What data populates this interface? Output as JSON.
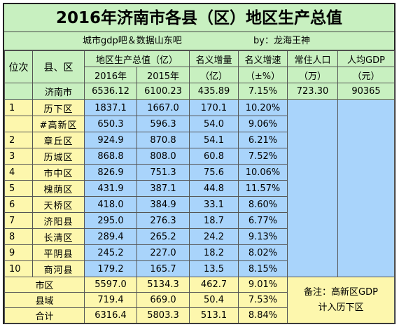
{
  "title": "2016年济南市各县（区）地区生产总值",
  "subtitle": {
    "source": "城市gdp吧＆数据山东吧",
    "author": "by：龙海王神"
  },
  "header": {
    "rank": "位次",
    "region": "县、区",
    "gdp_group": "地区生产总值（亿）",
    "y2016": "2016年",
    "y2015": "2015年",
    "nominal_increase": "名义增量",
    "nominal_increase_unit": "（亿）",
    "nominal_rate": "名义增速",
    "nominal_rate_unit": "（±%）",
    "resident_pop": "常住人口",
    "resident_pop_unit": "（万）",
    "per_capita": "人均GDP",
    "per_capita_unit": "（元）"
  },
  "jinan": {
    "name": "济南市",
    "y2016": "6536.12",
    "y2015": "6100.23",
    "inc": "435.89",
    "rate": "7.15%",
    "pop": "723.30",
    "per": "90365"
  },
  "rows": [
    {
      "rank": "1",
      "name": "历下区",
      "y2016": "1837.1",
      "y2015": "1667.0",
      "inc": "170.1",
      "rate": "10.20%"
    },
    {
      "rank": "",
      "name": "#高新区",
      "y2016": "650.3",
      "y2015": "596.3",
      "inc": "54.0",
      "rate": "9.06%"
    },
    {
      "rank": "2",
      "name": "章丘区",
      "y2016": "924.9",
      "y2015": "870.8",
      "inc": "54.1",
      "rate": "6.21%"
    },
    {
      "rank": "3",
      "name": "历城区",
      "y2016": "868.8",
      "y2015": "808.0",
      "inc": "60.8",
      "rate": "7.52%"
    },
    {
      "rank": "4",
      "name": "市中区",
      "y2016": "826.9",
      "y2015": "751.3",
      "inc": "75.6",
      "rate": "10.06%"
    },
    {
      "rank": "5",
      "name": "槐荫区",
      "y2016": "431.9",
      "y2015": "387.1",
      "inc": "44.8",
      "rate": "11.57%"
    },
    {
      "rank": "6",
      "name": "天桥区",
      "y2016": "418.0",
      "y2015": "384.9",
      "inc": "33.1",
      "rate": "8.60%"
    },
    {
      "rank": "7",
      "name": "济阳县",
      "y2016": "295.0",
      "y2015": "276.3",
      "inc": "18.7",
      "rate": "6.77%"
    },
    {
      "rank": "8",
      "name": "长清区",
      "y2016": "289.4",
      "y2015": "265.2",
      "inc": "24.2",
      "rate": "9.13%"
    },
    {
      "rank": "9",
      "name": "平阴县",
      "y2016": "245.2",
      "y2015": "227.0",
      "inc": "18.2",
      "rate": "8.02%"
    },
    {
      "rank": "10",
      "name": "商河县",
      "y2016": "179.2",
      "y2015": "165.7",
      "inc": "13.5",
      "rate": "8.15%"
    }
  ],
  "summary": [
    {
      "name": "市区",
      "y2016": "5597.0",
      "y2015": "5134.3",
      "inc": "462.7",
      "rate": "9.01%"
    },
    {
      "name": "县域",
      "y2016": "719.4",
      "y2015": "669.0",
      "inc": "50.4",
      "rate": "7.53%"
    },
    {
      "name": "合计",
      "y2016": "6316.4",
      "y2015": "5803.3",
      "inc": "513.1",
      "rate": "8.84%"
    }
  ],
  "note": {
    "line1": "备注：高新区GDP",
    "line2": "计入历下区"
  }
}
